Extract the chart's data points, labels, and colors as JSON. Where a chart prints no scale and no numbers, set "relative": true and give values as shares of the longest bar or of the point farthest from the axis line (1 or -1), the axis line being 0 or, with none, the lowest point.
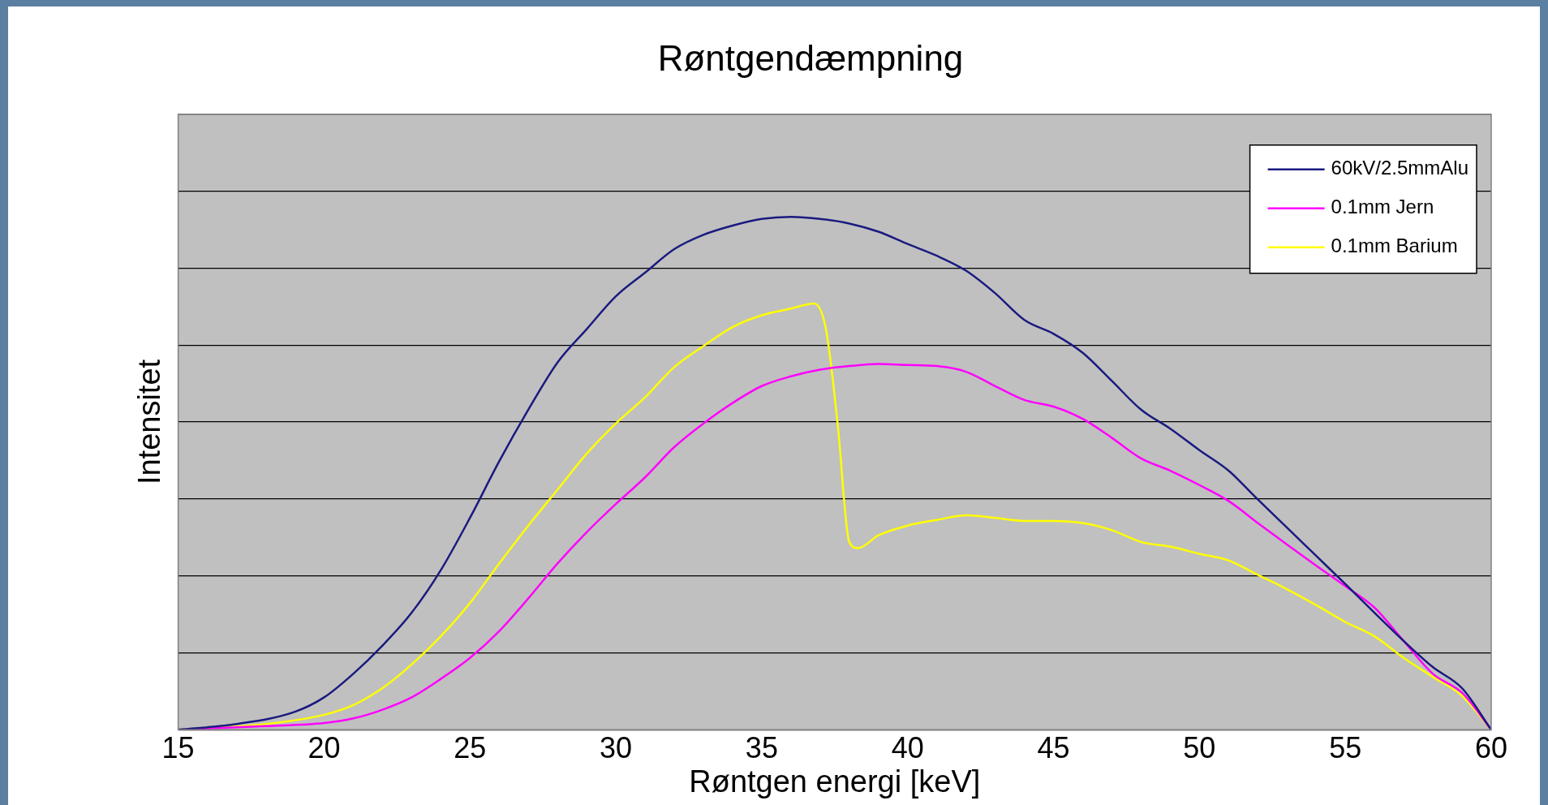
{
  "chart_data": {
    "type": "line",
    "title": "Røntgendæmpning",
    "xlabel": "Røntgen energi [keV]",
    "ylabel": "Intensitet",
    "relative": true,
    "xlim": [
      15,
      60
    ],
    "xticks": [
      15,
      20,
      25,
      30,
      35,
      40,
      45,
      50,
      55,
      60
    ],
    "grid": "y",
    "legend": "top right",
    "marker": "none",
    "line_style": "solid",
    "series": [
      {
        "name": "60kV/2.5mmAlu",
        "color": "#1a1a80",
        "x": [
          15,
          17,
          19,
          20,
          21,
          22,
          23,
          24,
          25,
          26,
          27,
          28,
          29,
          30,
          31,
          32,
          33,
          34,
          35,
          36,
          37,
          38,
          39,
          40,
          41,
          42,
          43,
          44,
          45,
          46,
          47,
          48,
          49,
          50,
          51,
          52,
          53,
          54,
          55,
          56,
          57,
          58,
          59,
          60
        ],
        "values": [
          0,
          0.011,
          0.035,
          0.063,
          0.109,
          0.164,
          0.228,
          0.311,
          0.413,
          0.523,
          0.624,
          0.716,
          0.781,
          0.845,
          0.891,
          0.937,
          0.965,
          0.983,
          0.996,
          1,
          0.996,
          0.987,
          0.971,
          0.947,
          0.924,
          0.895,
          0.851,
          0.799,
          0.772,
          0.735,
          0.68,
          0.624,
          0.587,
          0.545,
          0.505,
          0.449,
          0.394,
          0.339,
          0.284,
          0.228,
          0.173,
          0.122,
          0.081,
          0
        ]
      },
      {
        "name": "0.1mm Jern",
        "color": "#ff00ff",
        "x": [
          15,
          18,
          20,
          21,
          22,
          23,
          24,
          25,
          26,
          27,
          28,
          29,
          30,
          31,
          32,
          33,
          34,
          35,
          36,
          37,
          38,
          39,
          40,
          41,
          42,
          43,
          44,
          45,
          46,
          47,
          48,
          49,
          50,
          51,
          52,
          53,
          54,
          55,
          56,
          57,
          58,
          59,
          60
        ],
        "values": [
          0,
          0.007,
          0.013,
          0.022,
          0.039,
          0.063,
          0.099,
          0.14,
          0.192,
          0.256,
          0.324,
          0.385,
          0.44,
          0.492,
          0.551,
          0.597,
          0.637,
          0.67,
          0.689,
          0.702,
          0.709,
          0.713,
          0.711,
          0.709,
          0.698,
          0.67,
          0.643,
          0.63,
          0.606,
          0.569,
          0.529,
          0.505,
          0.477,
          0.446,
          0.403,
          0.361,
          0.32,
          0.28,
          0.238,
          0.173,
          0.109,
          0.072,
          0
        ]
      },
      {
        "name": "0.1mm Barium",
        "color": "#ffff00",
        "x": [
          15,
          18,
          20,
          21,
          22,
          23,
          24,
          25,
          26,
          27,
          28,
          29,
          30,
          31,
          32,
          33,
          34,
          35,
          36,
          36.8,
          37.2,
          37.6,
          38,
          38.3,
          39,
          40,
          41,
          42,
          43,
          44,
          45,
          46,
          47,
          48,
          49,
          50,
          51,
          52,
          53,
          54,
          55,
          56,
          57,
          58,
          59,
          60
        ],
        "values": [
          0,
          0.011,
          0.029,
          0.048,
          0.081,
          0.127,
          0.182,
          0.247,
          0.324,
          0.398,
          0.468,
          0.538,
          0.597,
          0.648,
          0.707,
          0.748,
          0.785,
          0.808,
          0.821,
          0.831,
          0.781,
          0.597,
          0.366,
          0.354,
          0.379,
          0.398,
          0.409,
          0.418,
          0.413,
          0.407,
          0.407,
          0.403,
          0.389,
          0.366,
          0.357,
          0.343,
          0.33,
          0.302,
          0.274,
          0.243,
          0.21,
          0.182,
          0.14,
          0.103,
          0.066,
          0
        ]
      }
    ]
  }
}
